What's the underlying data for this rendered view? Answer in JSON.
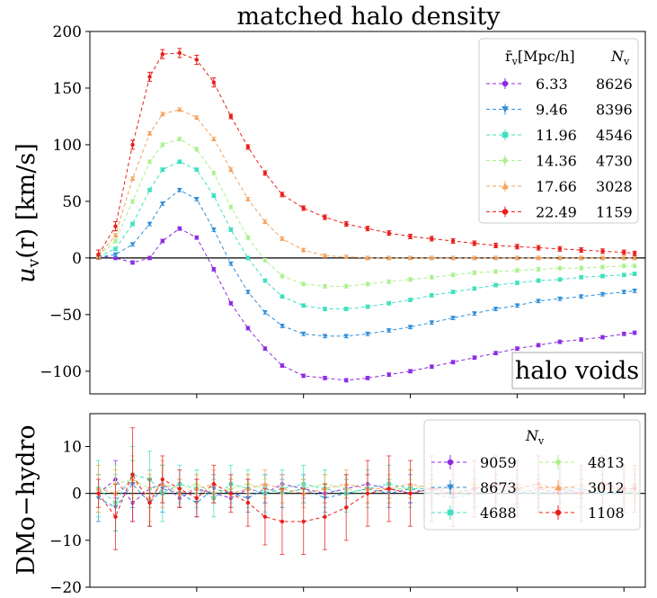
{
  "chart_data": [
    {
      "type": "line",
      "title": "matched halo density",
      "ylabel": "u_v(r) [km/s]",
      "ylabel_main": "u",
      "ylabel_sub": "v",
      "ylabel_rest": "(r) [km/s]",
      "ylim": [
        -120,
        200
      ],
      "yticks": [
        -100,
        -50,
        0,
        50,
        100,
        150,
        200
      ],
      "yticklabels": [
        "−100",
        "−50",
        "0",
        "50",
        "100",
        "150",
        "200"
      ],
      "xlim": [
        0,
        2.6
      ],
      "xticks": [
        0.5,
        1.0,
        1.5,
        2.0,
        2.5
      ],
      "annotation": "halo voids",
      "legend": {
        "header_radius": "r̄v[Mpc/h]",
        "header_radius_main": "r̄",
        "header_radius_sub": "v",
        "header_radius_unit": "[Mpc/h]",
        "header_count": "Nv",
        "header_count_main": "N",
        "header_count_sub": "v",
        "placement": "top-right"
      },
      "series": [
        {
          "name": "6.33",
          "count": "8626",
          "color": "#8b2be2",
          "marker": "circle",
          "x": [
            0.04,
            0.12,
            0.2,
            0.28,
            0.34,
            0.42,
            0.5,
            0.58,
            0.66,
            0.74,
            0.82,
            0.9,
            1.0,
            1.1,
            1.2,
            1.3,
            1.4,
            1.5,
            1.6,
            1.7,
            1.8,
            1.9,
            2.0,
            2.1,
            2.2,
            2.3,
            2.4,
            2.5,
            2.55
          ],
          "y": [
            2,
            0,
            -4,
            0,
            15,
            26,
            18,
            -10,
            -40,
            -62,
            -80,
            -95,
            -104,
            -106,
            -108,
            -106,
            -103,
            -100,
            -96,
            -92,
            -88,
            -84,
            -80,
            -77,
            -74,
            -72,
            -70,
            -67,
            -66
          ]
        },
        {
          "name": "9.46",
          "count": "8396",
          "color": "#2e8ed8",
          "marker": "tri_down",
          "x": [
            0.04,
            0.12,
            0.2,
            0.28,
            0.34,
            0.42,
            0.5,
            0.58,
            0.66,
            0.74,
            0.82,
            0.9,
            1.0,
            1.1,
            1.2,
            1.3,
            1.4,
            1.5,
            1.6,
            1.7,
            1.8,
            1.9,
            2.0,
            2.1,
            2.2,
            2.3,
            2.4,
            2.5,
            2.55
          ],
          "y": [
            1,
            3,
            12,
            30,
            48,
            60,
            52,
            25,
            -5,
            -30,
            -48,
            -60,
            -67,
            -69,
            -69,
            -67,
            -64,
            -61,
            -57,
            -53,
            -49,
            -45,
            -42,
            -38,
            -36,
            -34,
            -32,
            -30,
            -29
          ]
        },
        {
          "name": "11.96",
          "count": "4546",
          "color": "#3fe0c0",
          "marker": "square",
          "x": [
            0.04,
            0.12,
            0.2,
            0.28,
            0.34,
            0.42,
            0.5,
            0.58,
            0.66,
            0.74,
            0.82,
            0.9,
            1.0,
            1.1,
            1.2,
            1.3,
            1.4,
            1.5,
            1.6,
            1.7,
            1.8,
            1.9,
            2.0,
            2.1,
            2.2,
            2.3,
            2.4,
            2.5,
            2.55
          ],
          "y": [
            1,
            8,
            30,
            60,
            78,
            85,
            78,
            55,
            25,
            0,
            -20,
            -34,
            -42,
            -45,
            -45,
            -43,
            -40,
            -37,
            -33,
            -30,
            -27,
            -24,
            -22,
            -20,
            -19,
            -17,
            -16,
            -15,
            -14
          ]
        },
        {
          "name": "14.36",
          "count": "4730",
          "color": "#a8f08a",
          "marker": "diamond",
          "x": [
            0.04,
            0.12,
            0.2,
            0.28,
            0.34,
            0.42,
            0.5,
            0.58,
            0.66,
            0.74,
            0.82,
            0.9,
            1.0,
            1.1,
            1.2,
            1.3,
            1.4,
            1.5,
            1.6,
            1.7,
            1.8,
            1.9,
            2.0,
            2.1,
            2.2,
            2.3,
            2.4,
            2.5,
            2.55
          ],
          "y": [
            2,
            15,
            50,
            85,
            100,
            105,
            96,
            75,
            45,
            18,
            -2,
            -16,
            -23,
            -25,
            -25,
            -23,
            -21,
            -19,
            -17,
            -15,
            -13,
            -12,
            -11,
            -10,
            -9,
            -9,
            -8,
            -7,
            -7
          ]
        },
        {
          "name": "17.66",
          "count": "3028",
          "color": "#f5a05a",
          "marker": "tri_up",
          "x": [
            0.04,
            0.12,
            0.2,
            0.28,
            0.34,
            0.42,
            0.5,
            0.58,
            0.66,
            0.74,
            0.82,
            0.9,
            1.0,
            1.1,
            1.2,
            1.3,
            1.4,
            1.5,
            1.6,
            1.7,
            1.8,
            1.9,
            2.0,
            2.1,
            2.2,
            2.3,
            2.4,
            2.5,
            2.55
          ],
          "y": [
            2,
            20,
            70,
            110,
            127,
            131,
            124,
            105,
            78,
            52,
            32,
            17,
            7,
            2,
            1,
            0,
            0,
            0,
            0,
            0,
            0,
            0,
            0,
            0,
            0,
            0,
            0,
            0,
            0
          ]
        },
        {
          "name": "22.49",
          "count": "1159",
          "color": "#e8201c",
          "marker": "circle",
          "x": [
            0.04,
            0.12,
            0.2,
            0.28,
            0.34,
            0.42,
            0.5,
            0.58,
            0.66,
            0.74,
            0.82,
            0.9,
            1.0,
            1.1,
            1.2,
            1.3,
            1.4,
            1.5,
            1.6,
            1.7,
            1.8,
            1.9,
            2.0,
            2.1,
            2.2,
            2.3,
            2.4,
            2.5,
            2.55
          ],
          "y": [
            3,
            28,
            100,
            160,
            180,
            181,
            175,
            155,
            125,
            98,
            75,
            56,
            44,
            36,
            30,
            26,
            22,
            19,
            17,
            15,
            13,
            11,
            10,
            9,
            8,
            7,
            6,
            5,
            4
          ]
        }
      ]
    },
    {
      "type": "line",
      "ylabel": "DMo−hydro",
      "ylim": [
        -20,
        17
      ],
      "yticks": [
        -20,
        -10,
        0,
        10
      ],
      "yticklabels": [
        "−20",
        "−10",
        "0",
        "10"
      ],
      "xlim": [
        0,
        2.6
      ],
      "xticks": [
        0.5,
        1.0,
        1.5,
        2.0,
        2.5
      ],
      "legend": {
        "title": "Nv",
        "title_main": "N",
        "title_sub": "v",
        "placement": "top-right",
        "columns": 2
      },
      "series": [
        {
          "name": "9059",
          "color": "#8b2be2",
          "marker": "circle",
          "x": [
            0.04,
            0.12,
            0.2,
            0.28,
            0.34,
            0.42,
            0.5,
            0.58,
            0.66,
            0.74,
            0.82,
            0.9,
            1.0,
            1.1,
            1.2,
            1.3,
            1.4,
            1.5,
            1.6,
            1.7,
            1.8,
            1.9,
            2.0,
            2.1,
            2.2,
            2.3,
            2.4,
            2.5,
            2.55
          ],
          "y": [
            0,
            3,
            -2,
            1,
            2,
            -1,
            1,
            0,
            -1,
            1,
            0,
            2,
            1,
            0,
            1,
            2,
            1,
            0,
            1,
            1,
            0,
            1,
            0,
            1,
            0,
            1,
            0,
            1,
            0
          ]
        },
        {
          "name": "8673",
          "color": "#2e8ed8",
          "marker": "tri_down",
          "x": [
            0.04,
            0.12,
            0.2,
            0.28,
            0.34,
            0.42,
            0.5,
            0.58,
            0.66,
            0.74,
            0.82,
            0.9,
            1.0,
            1.1,
            1.2,
            1.3,
            1.4,
            1.5,
            1.6,
            1.7,
            1.8,
            1.9,
            2.0,
            2.1,
            2.2,
            2.3,
            2.4,
            2.5,
            2.55
          ],
          "y": [
            -1,
            -3,
            2,
            -2,
            1,
            0,
            -2,
            1,
            0,
            -1,
            1,
            0,
            1,
            -1,
            0,
            1,
            0,
            1,
            0,
            -1,
            0,
            1,
            0,
            0,
            1,
            0,
            0,
            0,
            1
          ]
        },
        {
          "name": "4688",
          "color": "#3fe0c0",
          "marker": "square",
          "x": [
            0.04,
            0.12,
            0.2,
            0.28,
            0.34,
            0.42,
            0.5,
            0.58,
            0.66,
            0.74,
            0.82,
            0.9,
            1.0,
            1.1,
            1.2,
            1.3,
            1.4,
            1.5,
            1.6,
            1.7,
            1.8,
            1.9,
            2.0,
            2.1,
            2.2,
            2.3,
            2.4,
            2.5,
            2.55
          ],
          "y": [
            1,
            -2,
            4,
            3,
            0,
            2,
            1,
            -1,
            2,
            1,
            0,
            1,
            2,
            1,
            0,
            1,
            2,
            1,
            1,
            0,
            1,
            2,
            1,
            0,
            1,
            1,
            0,
            1,
            0
          ]
        },
        {
          "name": "4813",
          "color": "#a8f08a",
          "marker": "diamond",
          "x": [
            0.04,
            0.12,
            0.2,
            0.28,
            0.34,
            0.42,
            0.5,
            0.58,
            0.66,
            0.74,
            0.82,
            0.9,
            1.0,
            1.1,
            1.2,
            1.3,
            1.4,
            1.5,
            1.6,
            1.7,
            1.8,
            1.9,
            2.0,
            2.1,
            2.2,
            2.3,
            2.4,
            2.5,
            2.55
          ],
          "y": [
            0,
            2,
            3,
            1,
            2,
            1,
            2,
            0,
            1,
            2,
            1,
            0,
            1,
            2,
            1,
            0,
            1,
            1,
            2,
            1,
            0,
            1,
            1,
            2,
            1,
            0,
            1,
            1,
            0
          ]
        },
        {
          "name": "3012",
          "color": "#f5a05a",
          "marker": "tri_up",
          "x": [
            0.04,
            0.12,
            0.2,
            0.28,
            0.34,
            0.42,
            0.5,
            0.58,
            0.66,
            0.74,
            0.82,
            0.9,
            1.0,
            1.1,
            1.2,
            1.3,
            1.4,
            1.5,
            1.6,
            1.7,
            1.8,
            1.9,
            2.0,
            2.1,
            2.2,
            2.3,
            2.4,
            2.5,
            2.55
          ],
          "y": [
            1,
            0,
            3,
            -1,
            2,
            0,
            1,
            2,
            0,
            1,
            2,
            1,
            0,
            1,
            2,
            1,
            1,
            2,
            1,
            1,
            2,
            1,
            2,
            1,
            1,
            2,
            1,
            1,
            2
          ]
        },
        {
          "name": "1108",
          "color": "#e8201c",
          "marker": "circle",
          "x": [
            0.04,
            0.12,
            0.2,
            0.28,
            0.34,
            0.42,
            0.5,
            0.58,
            0.66,
            0.74,
            0.82,
            0.9,
            1.0,
            1.1,
            1.2,
            1.3,
            1.4,
            1.5,
            1.6,
            1.7,
            1.8,
            1.9,
            2.0,
            2.1,
            2.2,
            2.3,
            2.4,
            2.5,
            2.55
          ],
          "y": [
            0,
            -5,
            4,
            -2,
            3,
            1,
            -1,
            2,
            0,
            -2,
            -5,
            -6,
            -6,
            -5,
            -3,
            0,
            1,
            0,
            1,
            0,
            1,
            2,
            1,
            2,
            1,
            0,
            2,
            1,
            1
          ],
          "yerr": [
            3,
            7,
            10,
            5,
            5,
            4,
            4,
            4,
            4,
            5,
            6,
            7,
            7,
            7,
            7,
            7,
            7,
            7,
            7,
            7,
            6,
            6,
            6,
            6,
            6,
            6,
            6,
            5,
            5
          ]
        }
      ]
    }
  ]
}
